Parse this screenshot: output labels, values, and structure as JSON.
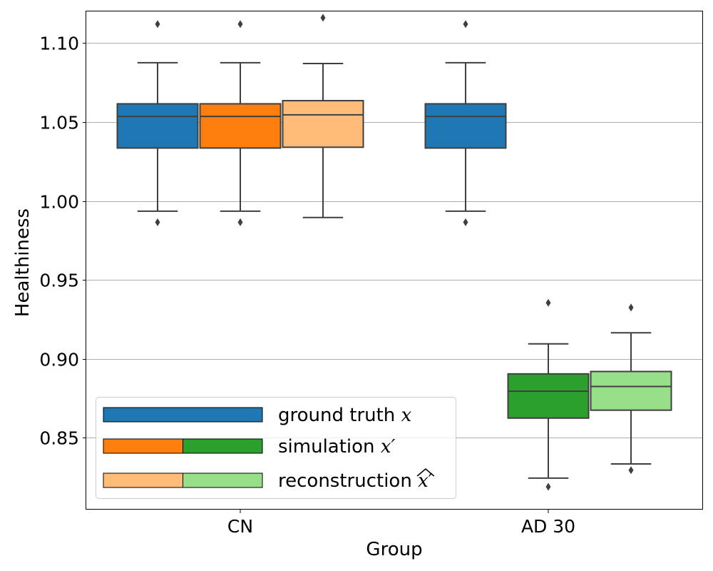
{
  "chart_data": {
    "type": "boxplot",
    "xlabel": "Group",
    "ylabel": "Healthiness",
    "ylim": [
      0.805,
      1.12
    ],
    "yticks": [
      "1.10",
      "1.05",
      "1.00",
      "0.95",
      "0.90",
      "0.85"
    ],
    "ytick_values": [
      1.1,
      1.05,
      1.0,
      0.95,
      0.9,
      0.85
    ],
    "grid": "horizontal",
    "categories": [
      "CN",
      "AD 30"
    ],
    "legend": {
      "placement": "lower-left",
      "entries": [
        {
          "base": "ground truth ",
          "math": "x",
          "colors": [
            "#1f77b4"
          ]
        },
        {
          "base": "simulation ",
          "math": "x′",
          "colors": [
            "#ff7f0e",
            "#2ca02c"
          ]
        },
        {
          "base": "reconstruction ",
          "math": "x′",
          "hat": true,
          "colors": [
            "#ffbb78",
            "#98df8a"
          ]
        }
      ]
    },
    "boxes": [
      {
        "group": "CN",
        "series": "ground truth",
        "slot": 0,
        "color": "#1f77b4",
        "q1": 1.0335,
        "median": 1.0535,
        "q3": 1.0615,
        "whisker_low": 0.9935,
        "whisker_high": 1.0875,
        "fliers": [
          0.9865,
          1.112
        ]
      },
      {
        "group": "CN",
        "series": "simulation",
        "slot": 1,
        "color": "#ff7f0e",
        "q1": 1.0335,
        "median": 1.0535,
        "q3": 1.0615,
        "whisker_low": 0.9935,
        "whisker_high": 1.0875,
        "fliers": [
          0.9865,
          1.112
        ]
      },
      {
        "group": "CN",
        "series": "reconstruction",
        "slot": 2,
        "color": "#ffbb78",
        "q1": 1.034,
        "median": 1.0545,
        "q3": 1.0635,
        "whisker_low": 0.9895,
        "whisker_high": 1.087,
        "fliers": [
          1.116
        ]
      },
      {
        "group": "AD 30",
        "series": "ground truth",
        "slot": 0,
        "color": "#1f77b4",
        "q1": 1.0335,
        "median": 1.0535,
        "q3": 1.0615,
        "whisker_low": 0.9935,
        "whisker_high": 1.0875,
        "fliers": [
          0.9865,
          1.112
        ]
      },
      {
        "group": "AD 30",
        "series": "simulation",
        "slot": 1,
        "color": "#2ca02c",
        "q1": 0.8625,
        "median": 0.8795,
        "q3": 0.8905,
        "whisker_low": 0.8245,
        "whisker_high": 0.9095,
        "fliers": [
          0.819,
          0.9355
        ]
      },
      {
        "group": "AD 30",
        "series": "reconstruction",
        "slot": 2,
        "color": "#98df8a",
        "q1": 0.8675,
        "median": 0.8825,
        "q3": 0.892,
        "whisker_low": 0.8335,
        "whisker_high": 0.9165,
        "fliers": [
          0.8295,
          0.9325
        ]
      }
    ]
  }
}
